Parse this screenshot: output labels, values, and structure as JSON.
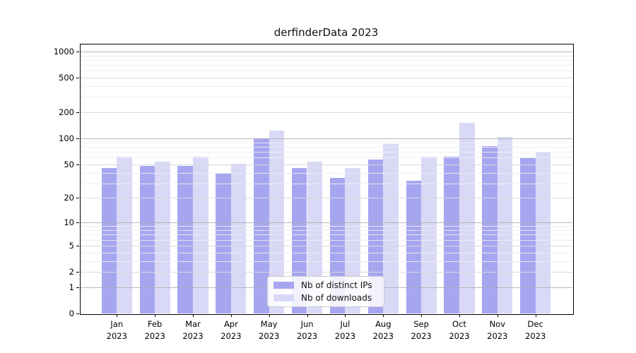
{
  "chart_data": {
    "type": "bar",
    "title": "derfinderData 2023",
    "scale": "log1p (y position proportional to log10(1+value), 0 at baseline)",
    "categories": [
      "Jan",
      "Feb",
      "Mar",
      "Apr",
      "May",
      "Jun",
      "Jul",
      "Aug",
      "Sep",
      "Oct",
      "Nov",
      "Dec"
    ],
    "year_line": "2023",
    "series": [
      {
        "name": "Nb of distinct IPs",
        "color": "#a6a6f0",
        "values": [
          45,
          48,
          48,
          40,
          100,
          45,
          35,
          57,
          32,
          61,
          81,
          60
        ]
      },
      {
        "name": "Nb of downloads",
        "color": "#d9d9f7",
        "values": [
          61,
          54,
          61,
          51,
          124,
          54,
          45,
          87,
          61,
          152,
          104,
          70
        ]
      }
    ],
    "y_ticks": [
      0,
      1,
      2,
      5,
      10,
      20,
      50,
      100,
      200,
      500,
      1000
    ],
    "y_minor_gridlines": [
      3,
      4,
      6,
      7,
      8,
      9,
      30,
      40,
      60,
      70,
      80,
      90,
      300,
      400,
      600,
      700,
      800,
      900
    ],
    "ylim": [
      0,
      1220
    ],
    "xlabel": "",
    "ylabel": "",
    "grid": true,
    "legend_position": "bottom-center-inside",
    "gridline_colors": {
      "power_of_ten": "#ababab",
      "major": "#d9d9d9",
      "minor": "#ececec"
    }
  }
}
